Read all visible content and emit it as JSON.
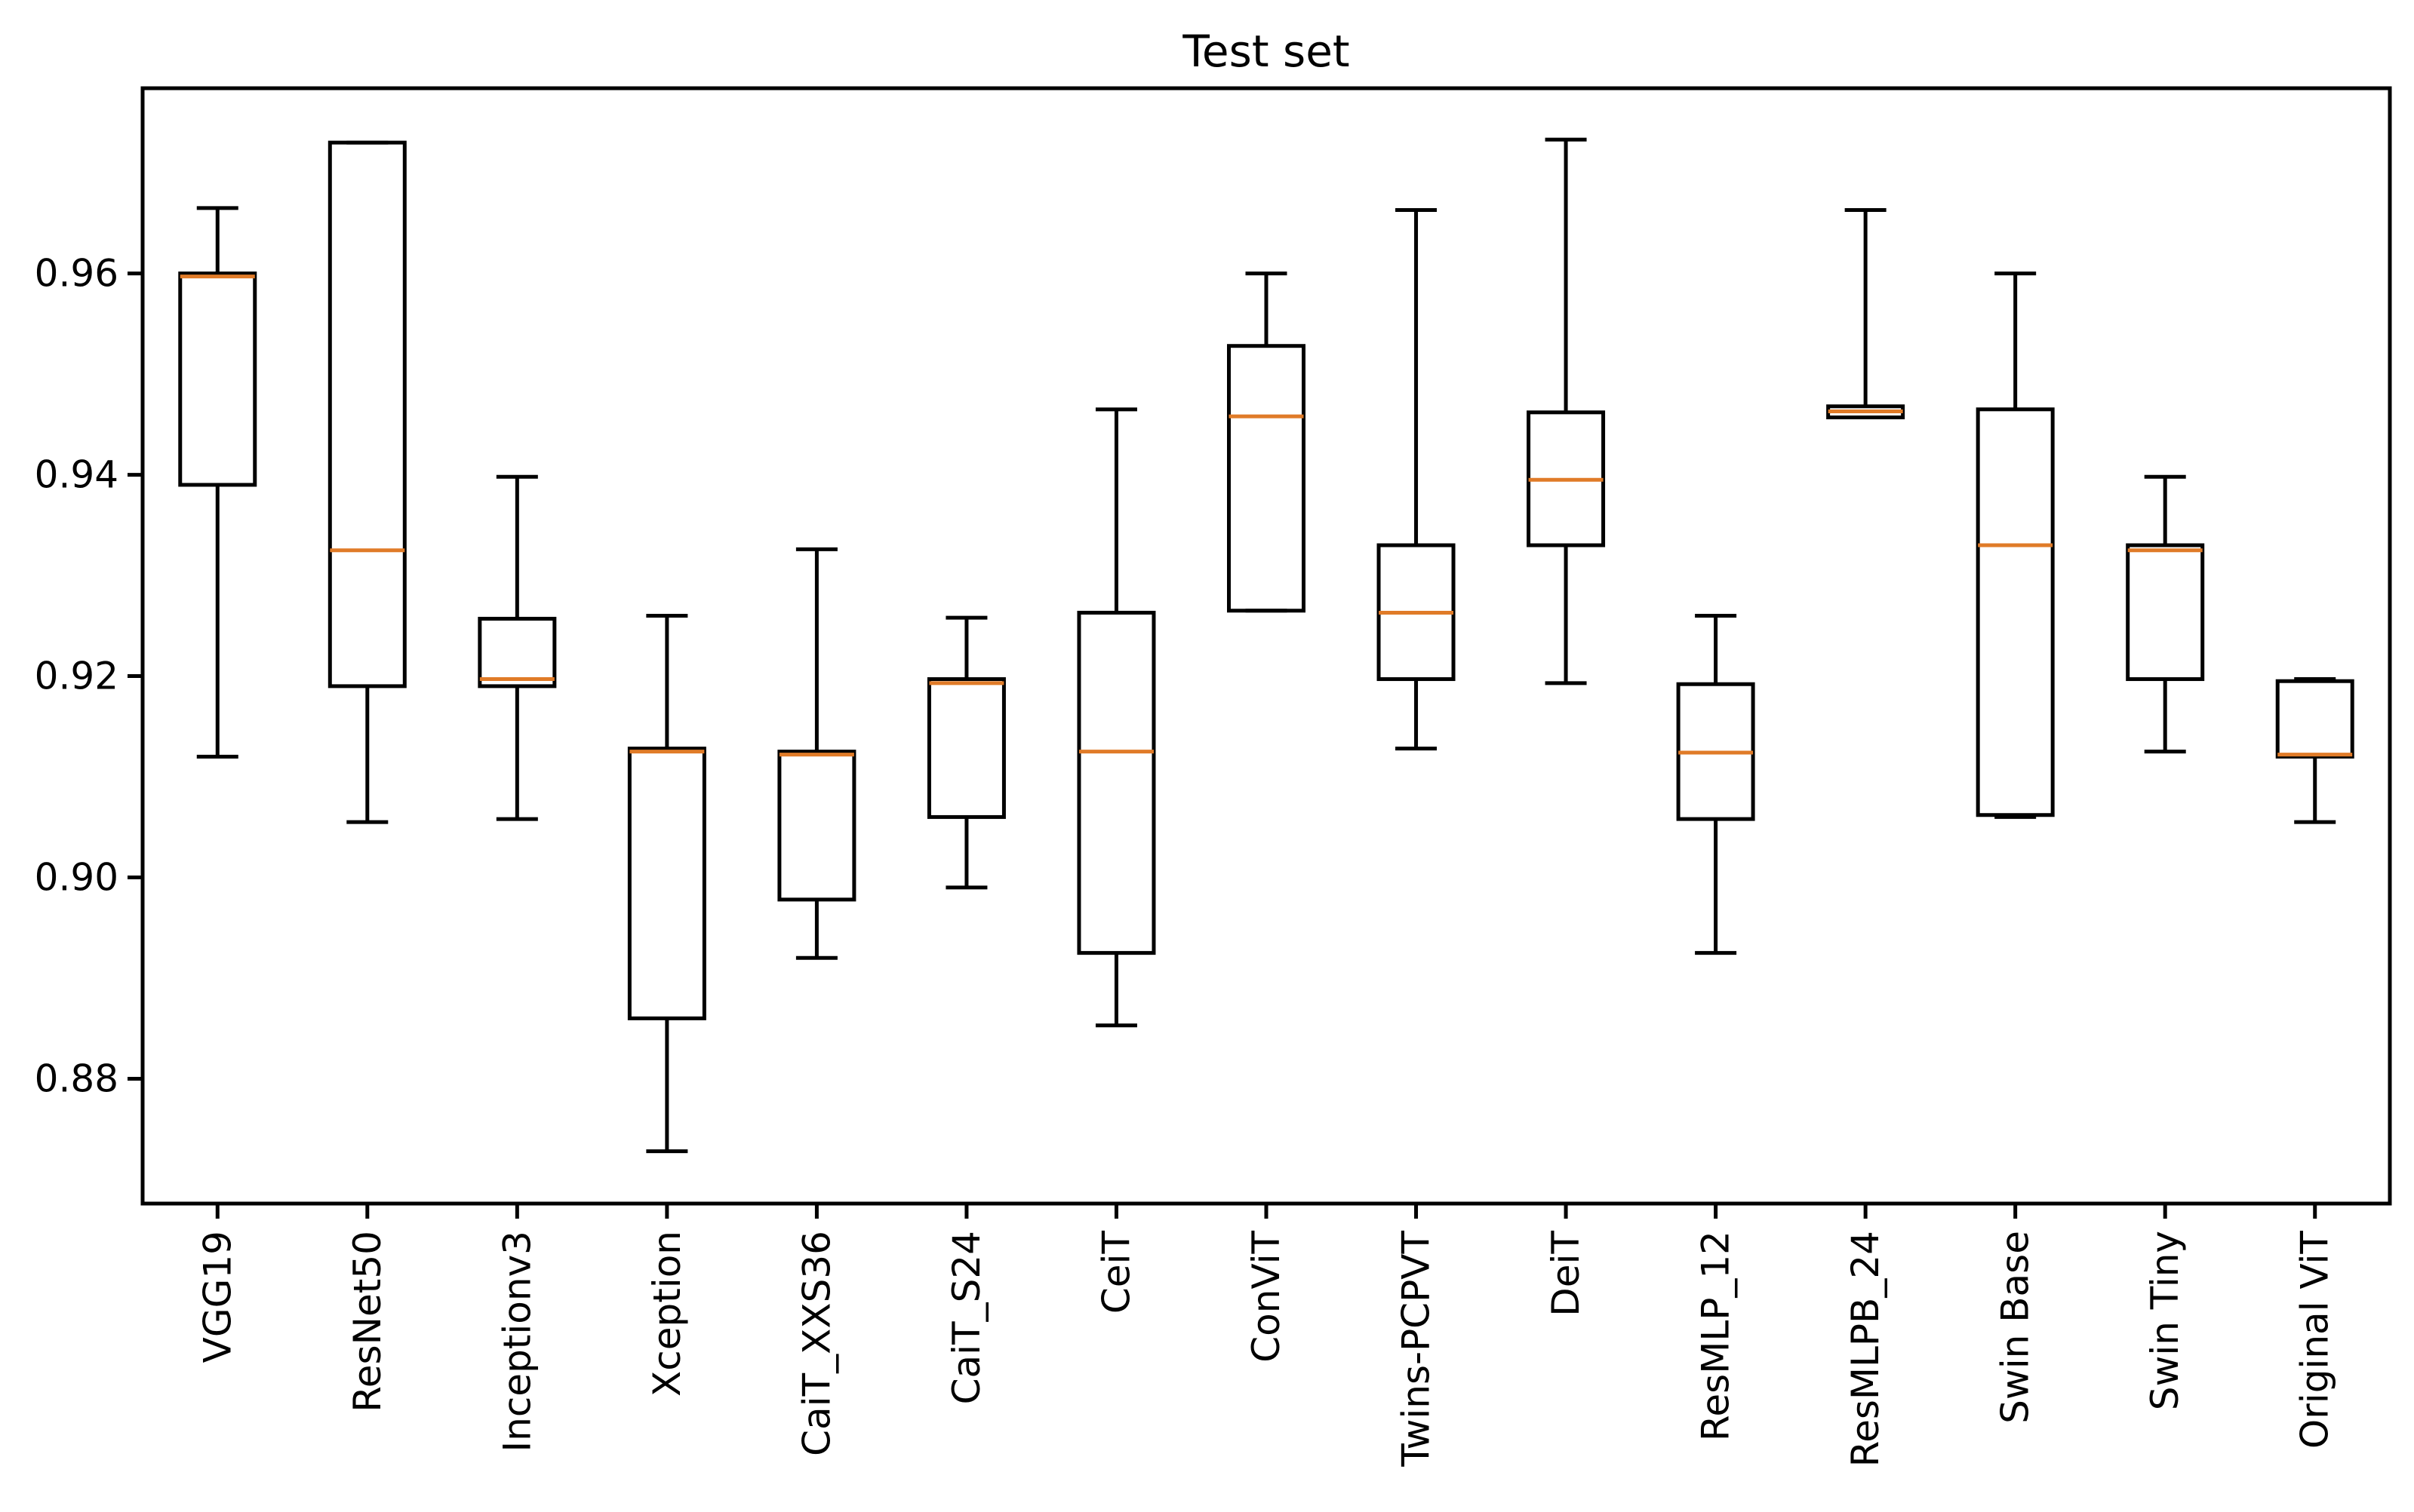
{
  "chart_data": {
    "type": "boxplot",
    "title": "Test set",
    "xlabel": "",
    "ylabel": "",
    "grid": false,
    "legend": null,
    "ylim": [
      0.8676,
      0.9784
    ],
    "yticks": [
      {
        "value": 0.96,
        "label": "0.96"
      },
      {
        "value": 0.94,
        "label": "0.94"
      },
      {
        "value": 0.92,
        "label": "0.92"
      },
      {
        "value": 0.9,
        "label": "0.90"
      },
      {
        "value": 0.88,
        "label": "0.88"
      }
    ],
    "categories": [
      "VGG19",
      "ResNet50",
      "Inceptionv3",
      "Xception",
      "CaiT_XXS36",
      "CaiT_S24",
      "CeiT",
      "ConViT",
      "Twins-PCPVT",
      "DeiT",
      "ResMLP_12",
      "ResMLPB_24",
      "Swin Base",
      "Swin Tiny",
      "Original ViT"
    ],
    "boxes": [
      {
        "whislo": 0.912,
        "q1": 0.939,
        "med": 0.9597,
        "q3": 0.96,
        "whishi": 0.9665
      },
      {
        "whislo": 0.9055,
        "q1": 0.919,
        "med": 0.9325,
        "q3": 0.973,
        "whishi": 0.973
      },
      {
        "whislo": 0.9058,
        "q1": 0.919,
        "med": 0.9197,
        "q3": 0.9257,
        "whishi": 0.9398
      },
      {
        "whislo": 0.8728,
        "q1": 0.886,
        "med": 0.9125,
        "q3": 0.9128,
        "whishi": 0.926
      },
      {
        "whislo": 0.892,
        "q1": 0.8978,
        "med": 0.9122,
        "q3": 0.9125,
        "whishi": 0.9326
      },
      {
        "whislo": 0.899,
        "q1": 0.906,
        "med": 0.9193,
        "q3": 0.9197,
        "whishi": 0.9258
      },
      {
        "whislo": 0.8853,
        "q1": 0.8925,
        "med": 0.9125,
        "q3": 0.9263,
        "whishi": 0.9465
      },
      {
        "whislo": 0.9265,
        "q1": 0.9265,
        "med": 0.9458,
        "q3": 0.9528,
        "whishi": 0.96
      },
      {
        "whislo": 0.9128,
        "q1": 0.9197,
        "med": 0.9263,
        "q3": 0.933,
        "whishi": 0.9663
      },
      {
        "whislo": 0.9193,
        "q1": 0.933,
        "med": 0.9395,
        "q3": 0.9462,
        "whishi": 0.9733
      },
      {
        "whislo": 0.8925,
        "q1": 0.9058,
        "med": 0.9124,
        "q3": 0.9192,
        "whishi": 0.926
      },
      {
        "whislo": 0.9457,
        "q1": 0.9457,
        "med": 0.9463,
        "q3": 0.9468,
        "whishi": 0.9663
      },
      {
        "whislo": 0.906,
        "q1": 0.9062,
        "med": 0.933,
        "q3": 0.9465,
        "whishi": 0.96
      },
      {
        "whislo": 0.9125,
        "q1": 0.9197,
        "med": 0.9325,
        "q3": 0.933,
        "whishi": 0.9398
      },
      {
        "whislo": 0.9055,
        "q1": 0.912,
        "med": 0.9122,
        "q3": 0.9195,
        "whishi": 0.9197
      }
    ],
    "colors": {
      "line": "#000000",
      "median": "#e07b28",
      "background": "#ffffff"
    }
  }
}
